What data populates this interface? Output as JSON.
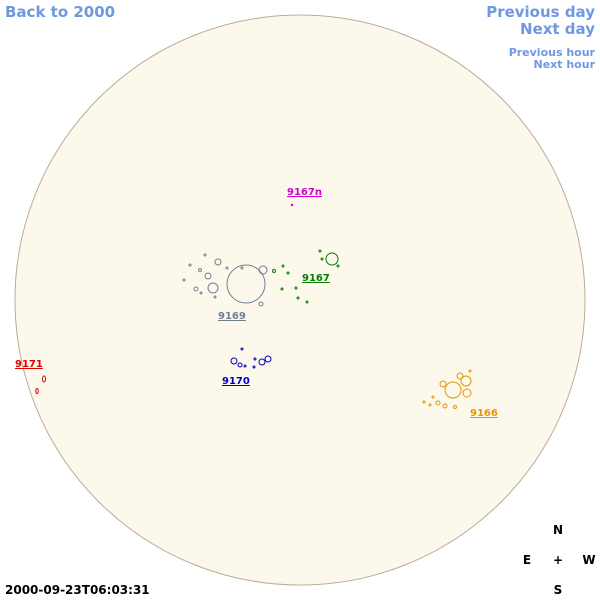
{
  "nav": {
    "back": "Back to 2000",
    "previous_day": "Previous day",
    "next_day": "Next day",
    "previous_hour": "Previous hour",
    "next_hour": "Next hour"
  },
  "regions": [
    "9167n",
    "9167",
    "9169",
    "9170",
    "9171",
    "9166"
  ],
  "compass": {
    "north": "N",
    "east": "E",
    "center": "+",
    "west": "W",
    "south": "S"
  },
  "timestamp": "2000-09-23T06:03:31"
}
